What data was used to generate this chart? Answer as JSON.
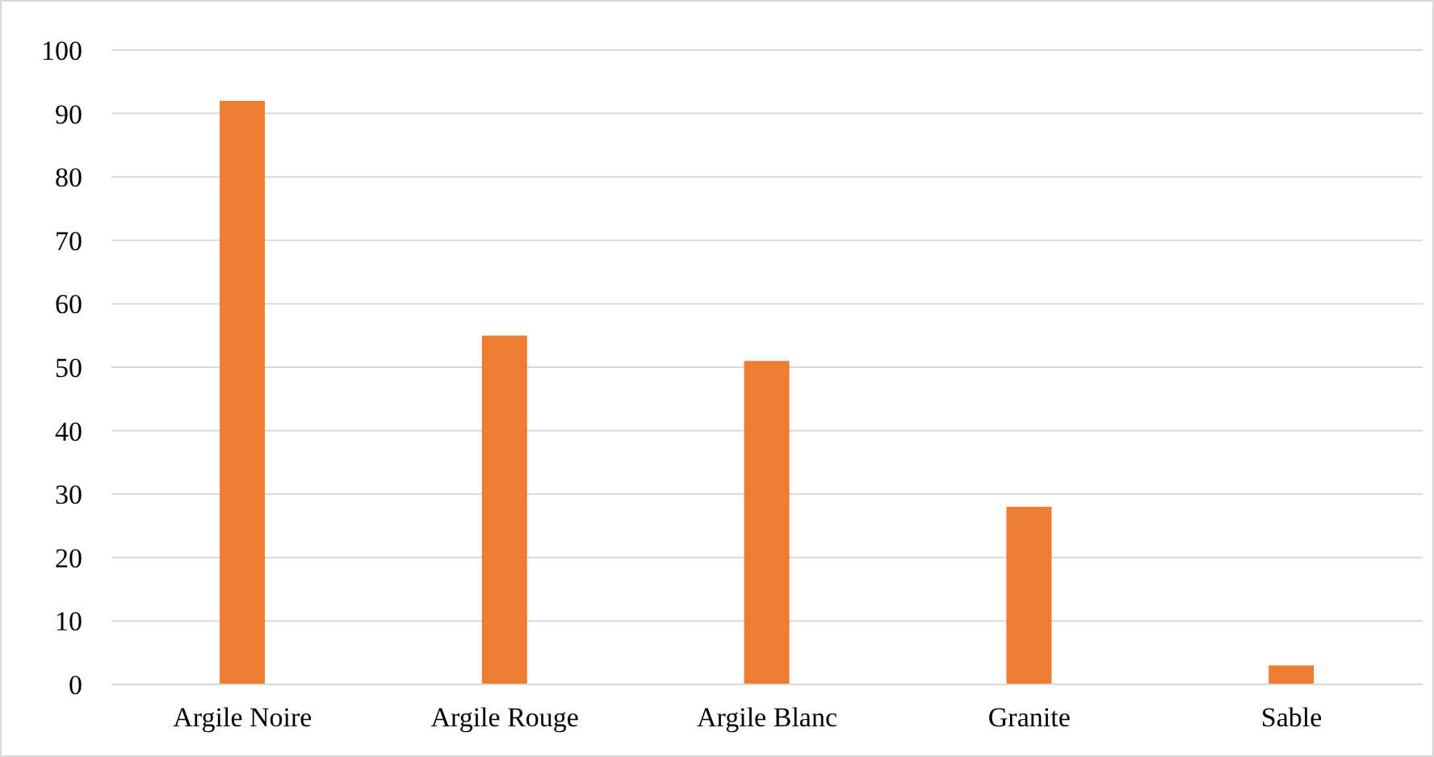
{
  "chart_data": {
    "type": "bar",
    "categories": [
      "Argile Noire",
      "Argile Rouge",
      "Argile Blanc",
      "Granite",
      "Sable"
    ],
    "values": [
      92,
      55,
      51,
      28,
      3
    ],
    "color": "#ed7d31",
    "ylim": [
      0,
      100
    ],
    "yticks": [
      0,
      10,
      20,
      30,
      40,
      50,
      60,
      70,
      80,
      90,
      100
    ],
    "grid": "y"
  }
}
